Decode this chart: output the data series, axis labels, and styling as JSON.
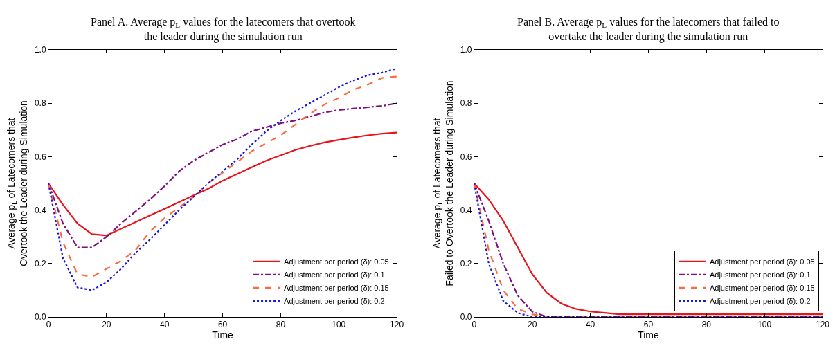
{
  "chart_data": [
    {
      "type": "line",
      "title": "Panel A. Average p$_{L}$ values for the latecomers that overtook\nthe leader during the simulation run",
      "xlabel": "Time",
      "ylabel": "Average p$_{L}$ of Latecomers that\nOvertook the Leader during Simulation",
      "x": [
        0,
        5,
        10,
        15,
        20,
        25,
        30,
        35,
        40,
        45,
        50,
        55,
        60,
        65,
        70,
        75,
        80,
        85,
        90,
        95,
        100,
        105,
        110,
        115,
        120
      ],
      "xlim": [
        0,
        120
      ],
      "xticks": [
        0,
        20,
        40,
        60,
        80,
        100,
        120
      ],
      "ylim": [
        0,
        1
      ],
      "yticks": [
        {
          "value": 0,
          "label": "0.0"
        },
        {
          "value": 0.2,
          "label": "0.2"
        },
        {
          "value": 0.4,
          "label": "0.4"
        },
        {
          "value": 0.6,
          "label": "0.6"
        },
        {
          "value": 0.8,
          "label": "0.8"
        },
        {
          "value": 1,
          "label": "1.0"
        }
      ],
      "grid": false,
      "legend": "bottom right",
      "marker": "none",
      "series": [
        {
          "name": "Adjustment per period (δ): 0.05",
          "color": "#e8141c",
          "line_style": "solid",
          "values": [
            0.5,
            0.42,
            0.35,
            0.31,
            0.305,
            0.33,
            0.355,
            0.38,
            0.405,
            0.43,
            0.455,
            0.48,
            0.51,
            0.535,
            0.56,
            0.585,
            0.605,
            0.625,
            0.64,
            0.653,
            0.663,
            0.672,
            0.68,
            0.686,
            0.69
          ]
        },
        {
          "name": "Adjustment per period (δ): 0.1",
          "color": "#7d0f7f",
          "line_style": "dashdot",
          "values": [
            0.5,
            0.35,
            0.26,
            0.26,
            0.3,
            0.35,
            0.395,
            0.44,
            0.49,
            0.545,
            0.585,
            0.615,
            0.645,
            0.665,
            0.695,
            0.71,
            0.725,
            0.735,
            0.75,
            0.765,
            0.775,
            0.78,
            0.785,
            0.79,
            0.8
          ]
        },
        {
          "name": "Adjustment per period (δ): 0.15",
          "color": "#ff6a3d",
          "line_style": "dashed",
          "values": [
            0.5,
            0.28,
            0.16,
            0.15,
            0.18,
            0.21,
            0.25,
            0.32,
            0.37,
            0.41,
            0.45,
            0.5,
            0.54,
            0.58,
            0.62,
            0.65,
            0.68,
            0.72,
            0.76,
            0.795,
            0.82,
            0.85,
            0.87,
            0.895,
            0.9
          ]
        },
        {
          "name": "Adjustment per period (δ): 0.2",
          "color": "#1515e0",
          "line_style": "dotted",
          "values": [
            0.5,
            0.22,
            0.11,
            0.1,
            0.13,
            0.18,
            0.24,
            0.29,
            0.345,
            0.4,
            0.45,
            0.5,
            0.545,
            0.59,
            0.645,
            0.695,
            0.735,
            0.77,
            0.8,
            0.83,
            0.86,
            0.885,
            0.905,
            0.915,
            0.93
          ]
        }
      ]
    },
    {
      "type": "line",
      "title": "Panel B. Average p$_{L}$ values for the latecomers that failed to\novertake the leader during the simulation run",
      "xlabel": "Time",
      "ylabel": "Average p$_{L}$ of Latecomers that\nFailed to Overtook the Leader during Simulation",
      "x": [
        0,
        5,
        10,
        15,
        20,
        25,
        30,
        35,
        40,
        45,
        50,
        55,
        60,
        65,
        70,
        75,
        80,
        85,
        90,
        95,
        100,
        105,
        110,
        115,
        120
      ],
      "xlim": [
        0,
        120
      ],
      "xticks": [
        0,
        20,
        40,
        60,
        80,
        100,
        120
      ],
      "ylim": [
        0,
        1
      ],
      "yticks": [
        {
          "value": 0,
          "label": "0.0"
        },
        {
          "value": 0.2,
          "label": "0.2"
        },
        {
          "value": 0.4,
          "label": "0.4"
        },
        {
          "value": 0.6,
          "label": "0.6"
        },
        {
          "value": 0.8,
          "label": "0.8"
        },
        {
          "value": 1,
          "label": "1.0"
        }
      ],
      "grid": false,
      "legend": "bottom right",
      "marker": "none",
      "series": [
        {
          "name": "Adjustment per period (δ): 0.05",
          "color": "#e8141c",
          "line_style": "solid",
          "values": [
            0.5,
            0.44,
            0.36,
            0.26,
            0.16,
            0.09,
            0.05,
            0.03,
            0.02,
            0.015,
            0.01,
            0.01,
            0.01,
            0.01,
            0.01,
            0.01,
            0.01,
            0.01,
            0.01,
            0.01,
            0.01,
            0.01,
            0.01,
            0.01,
            0.01
          ]
        },
        {
          "name": "Adjustment per period (δ): 0.1",
          "color": "#7d0f7f",
          "line_style": "dashdot",
          "values": [
            0.5,
            0.36,
            0.2,
            0.08,
            0.02,
            0,
            0,
            0,
            0,
            0,
            0,
            0,
            0,
            0,
            0,
            0,
            0,
            0,
            0,
            0,
            0,
            0,
            0,
            0,
            0
          ]
        },
        {
          "name": "Adjustment per period (δ): 0.15",
          "color": "#ff6a3d",
          "line_style": "dashed",
          "values": [
            0.5,
            0.25,
            0.1,
            0.03,
            0.01,
            0,
            0,
            0,
            0,
            0,
            0,
            0,
            0,
            0,
            0,
            0,
            0,
            0,
            0,
            0,
            0,
            0,
            0,
            0,
            0
          ]
        },
        {
          "name": "Adjustment per period (δ): 0.2",
          "color": "#1515e0",
          "line_style": "dotted",
          "values": [
            0.5,
            0.2,
            0.06,
            0.015,
            0,
            0,
            0,
            0,
            0,
            0,
            0,
            0,
            0,
            0,
            0,
            0,
            0,
            0,
            0,
            0,
            0,
            0,
            0,
            0,
            0
          ]
        }
      ]
    }
  ]
}
